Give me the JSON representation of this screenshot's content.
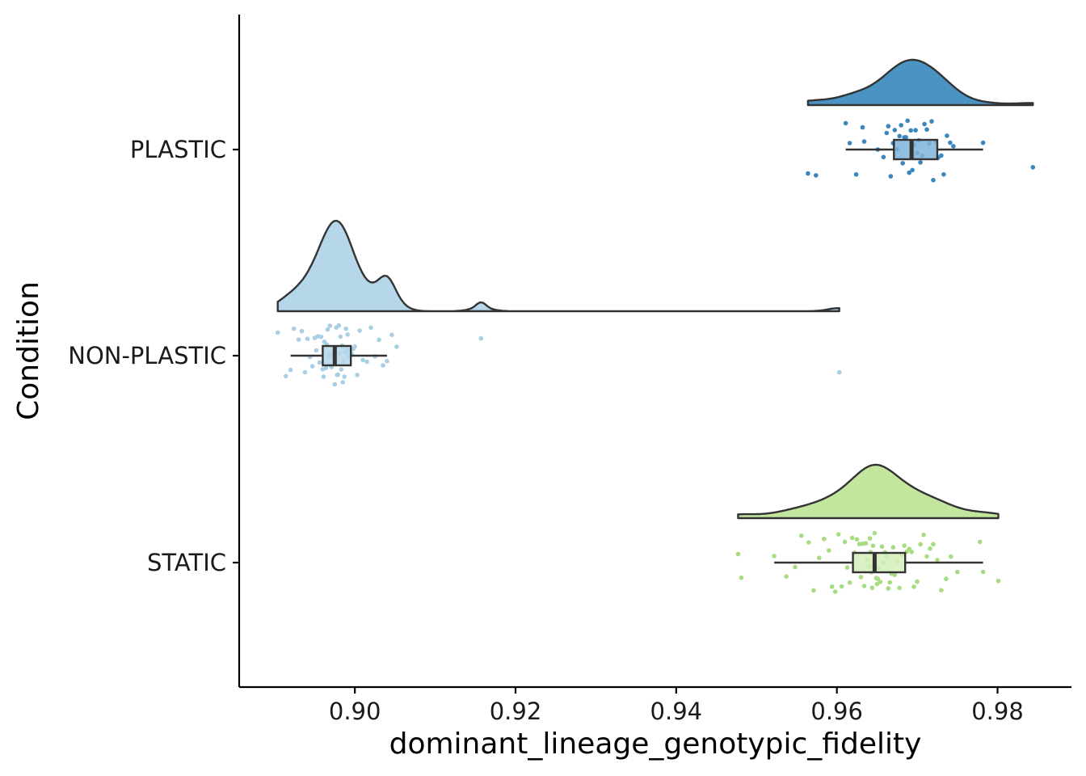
{
  "chart_data": {
    "type": "raincloud",
    "xlabel": "dominant_lineage_genotypic_fidelity",
    "ylabel": "Condition",
    "xlim": [
      0.8856,
      0.9892
    ],
    "xticks": [
      0.9,
      0.92,
      0.94,
      0.96,
      0.98
    ],
    "xtick_labels": [
      "0.90",
      "0.92",
      "0.94",
      "0.96",
      "0.98"
    ],
    "grid": false,
    "legend": "none",
    "series": [
      {
        "name": "PLASTIC",
        "color": "#4a93c3",
        "point_color": "#3a86bf",
        "box_fill": "#7fb4d9",
        "density_min": 0.9564,
        "density_max": 0.9844,
        "density_peak": 0.9693,
        "box": {
          "min": 0.9611,
          "q1": 0.9671,
          "median": 0.9693,
          "q3": 0.9725,
          "max": 0.9782
        },
        "points": [
          0.9564,
          0.9574,
          0.9611,
          0.9616,
          0.9624,
          0.9632,
          0.9634,
          0.9651,
          0.9658,
          0.9662,
          0.9664,
          0.9667,
          0.967,
          0.9672,
          0.9675,
          0.9678,
          0.968,
          0.9682,
          0.9684,
          0.9686,
          0.9688,
          0.969,
          0.9692,
          0.9694,
          0.9696,
          0.9698,
          0.97,
          0.9702,
          0.9704,
          0.9706,
          0.9709,
          0.9712,
          0.9715,
          0.9718,
          0.972,
          0.9723,
          0.9726,
          0.973,
          0.9733,
          0.9737,
          0.9741,
          0.9745,
          0.9782,
          0.9844
        ]
      },
      {
        "name": "NON-PLASTIC",
        "color": "#b6d6ea",
        "point_color": "#a9cfe7",
        "box_fill": "#b6d6ea",
        "density_min": 0.8904,
        "density_max": 0.9603,
        "density_peak": 0.8972,
        "box": {
          "min": 0.892,
          "q1": 0.896,
          "median": 0.8975,
          "q3": 0.8995,
          "max": 0.904
        },
        "points": [
          0.8904,
          0.8914,
          0.892,
          0.8924,
          0.893,
          0.8934,
          0.8938,
          0.8941,
          0.8944,
          0.8947,
          0.895,
          0.8952,
          0.8954,
          0.8956,
          0.8958,
          0.896,
          0.8961,
          0.8962,
          0.8964,
          0.8965,
          0.8966,
          0.8967,
          0.8968,
          0.8969,
          0.897,
          0.8971,
          0.8972,
          0.8973,
          0.8974,
          0.8975,
          0.8976,
          0.8977,
          0.8978,
          0.8979,
          0.898,
          0.8981,
          0.8982,
          0.8983,
          0.8984,
          0.8985,
          0.8986,
          0.8987,
          0.8988,
          0.8989,
          0.899,
          0.8991,
          0.8992,
          0.8994,
          0.8996,
          0.8998,
          0.9,
          0.9003,
          0.9006,
          0.901,
          0.9015,
          0.902,
          0.9025,
          0.903,
          0.9035,
          0.904,
          0.9046,
          0.9052,
          0.9157,
          0.9603
        ]
      },
      {
        "name": "STATIC",
        "color": "#c3e69f",
        "point_color": "#a8dc82",
        "box_fill": "#d4edbb",
        "density_min": 0.9477,
        "density_max": 0.9801,
        "density_peak": 0.9647,
        "box": {
          "min": 0.9522,
          "q1": 0.962,
          "median": 0.9647,
          "q3": 0.9685,
          "max": 0.9782
        },
        "points": [
          0.9477,
          0.9481,
          0.9522,
          0.9537,
          0.9548,
          0.9556,
          0.9565,
          0.9571,
          0.9578,
          0.9584,
          0.959,
          0.9594,
          0.9598,
          0.9602,
          0.9606,
          0.961,
          0.9613,
          0.9616,
          0.9619,
          0.9622,
          0.9625,
          0.9628,
          0.963,
          0.9632,
          0.9634,
          0.9636,
          0.9638,
          0.964,
          0.9641,
          0.9642,
          0.9643,
          0.9644,
          0.9645,
          0.9646,
          0.9647,
          0.9648,
          0.9649,
          0.965,
          0.9651,
          0.9652,
          0.9654,
          0.9656,
          0.9658,
          0.966,
          0.9662,
          0.9664,
          0.9666,
          0.9668,
          0.967,
          0.9672,
          0.9675,
          0.9678,
          0.9681,
          0.9684,
          0.9687,
          0.969,
          0.9693,
          0.9696,
          0.97,
          0.9704,
          0.9708,
          0.9712,
          0.9716,
          0.972,
          0.9725,
          0.973,
          0.9736,
          0.9742,
          0.975,
          0.9778,
          0.9782,
          0.9801
        ]
      }
    ]
  }
}
